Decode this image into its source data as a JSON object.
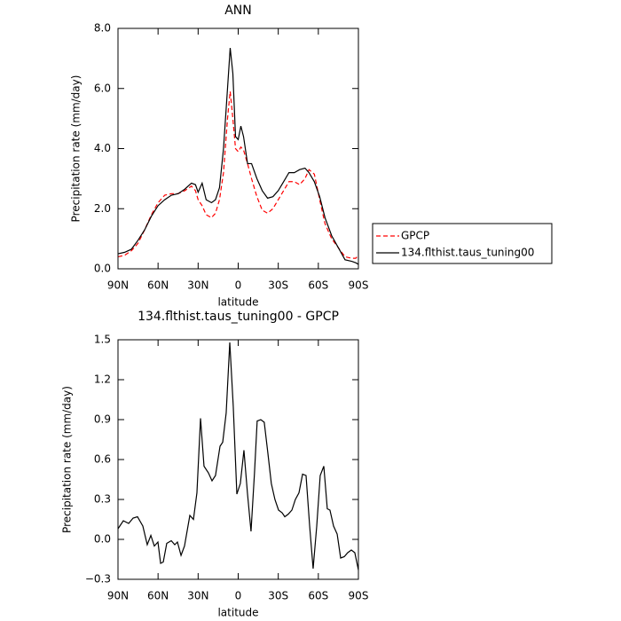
{
  "chart_data": [
    {
      "type": "line",
      "title": "ANN",
      "xlabel": "latitude",
      "ylabel": "Precipitation rate (mm/day)",
      "x": [
        90,
        85,
        80,
        75,
        70,
        65,
        60,
        55,
        50,
        45,
        40,
        35,
        32,
        30,
        27,
        24,
        20,
        17,
        14,
        11,
        8,
        6,
        4,
        2,
        0,
        -2,
        -4,
        -7,
        -10,
        -14,
        -18,
        -22,
        -26,
        -30,
        -34,
        -38,
        -42,
        -46,
        -50,
        -53,
        -57,
        -61,
        -65,
        -70,
        -75,
        -80,
        -85,
        -88,
        -90
      ],
      "series": [
        {
          "name": "GPCP",
          "color": "#ff0000",
          "linestyle": "dashed",
          "values": [
            0.4,
            0.45,
            0.6,
            0.85,
            1.3,
            1.8,
            2.2,
            2.45,
            2.5,
            2.5,
            2.6,
            2.75,
            2.6,
            2.3,
            2.1,
            1.8,
            1.7,
            1.85,
            2.3,
            3.2,
            5.0,
            5.9,
            5.0,
            4.0,
            3.9,
            4.05,
            3.95,
            3.5,
            3.0,
            2.4,
            1.95,
            1.85,
            2.0,
            2.3,
            2.6,
            2.9,
            2.9,
            2.8,
            3.0,
            3.3,
            3.15,
            2.3,
            1.5,
            1.0,
            0.7,
            0.4,
            0.35,
            0.35,
            0.45
          ]
        },
        {
          "name": "134.flthist.taus_tuning00",
          "color": "#000000",
          "linestyle": "solid",
          "values": [
            0.5,
            0.55,
            0.65,
            0.95,
            1.3,
            1.75,
            2.1,
            2.3,
            2.45,
            2.5,
            2.65,
            2.85,
            2.8,
            2.55,
            2.85,
            2.3,
            2.2,
            2.3,
            2.7,
            4.0,
            6.0,
            7.35,
            6.5,
            4.4,
            4.3,
            4.75,
            4.4,
            3.5,
            3.5,
            3.0,
            2.6,
            2.35,
            2.4,
            2.6,
            2.9,
            3.2,
            3.2,
            3.3,
            3.35,
            3.2,
            2.9,
            2.4,
            1.7,
            1.1,
            0.7,
            0.3,
            0.25,
            0.2,
            0.15
          ]
        }
      ],
      "xlim": [
        90,
        -90
      ],
      "xticks": [
        {
          "value": 90,
          "label": "90N"
        },
        {
          "value": 60,
          "label": "60N"
        },
        {
          "value": 30,
          "label": "30N"
        },
        0,
        {
          "value": -30,
          "label": "30S"
        },
        {
          "value": -60,
          "label": "60S"
        },
        {
          "value": -90,
          "label": "90S"
        }
      ],
      "ylim": [
        0,
        8
      ],
      "yticks": [
        {
          "value": 0,
          "label": "0.0"
        },
        {
          "value": 2,
          "label": "2.0"
        },
        {
          "value": 4,
          "label": "4.0"
        },
        {
          "value": 6,
          "label": "6.0"
        },
        {
          "value": 8,
          "label": "8.0"
        }
      ],
      "legend": "right"
    },
    {
      "type": "line",
      "title": "134.flthist.taus_tuning00 - GPCP",
      "xlabel": "latitude",
      "ylabel": "Precipitation rate (mm/day)",
      "x": [
        90,
        86.0,
        82.0,
        78.7,
        75.4,
        71.4,
        68.1,
        65.4,
        62.8,
        60.1,
        58.1,
        56.1,
        53.5,
        50.1,
        47.5,
        45.5,
        42.8,
        40.2,
        36.2,
        33.5,
        30.9,
        28.2,
        25.6,
        22.3,
        19.6,
        17.0,
        13.6,
        11.6,
        9.0,
        6.3,
        3.7,
        1.0,
        -1.6,
        -4.3,
        -6.9,
        -9.6,
        -12.2,
        -14.2,
        -16.9,
        -19.5,
        -22.2,
        -24.8,
        -27.5,
        -30.2,
        -32.9,
        -34.9,
        -37.5,
        -40.2,
        -42.8,
        -45.5,
        -48.2,
        -50.8,
        -53.5,
        -56.1,
        -58.8,
        -61.4,
        -64.1,
        -66.7,
        -68.7,
        -71.4,
        -74.1,
        -76.7,
        -79.4,
        -82.0,
        -84.7,
        -87.3,
        -90
      ],
      "series": [
        {
          "name": "134.flthist.taus_tuning00 - GPCP",
          "color": "#000000",
          "linestyle": "solid",
          "values": [
            0.08,
            0.14,
            0.12,
            0.16,
            0.17,
            0.1,
            -0.04,
            0.03,
            -0.05,
            -0.02,
            -0.18,
            -0.17,
            -0.03,
            -0.01,
            -0.04,
            -0.02,
            -0.12,
            -0.05,
            0.18,
            0.15,
            0.35,
            0.91,
            0.55,
            0.5,
            0.44,
            0.48,
            0.7,
            0.73,
            0.95,
            1.48,
            1.0,
            0.34,
            0.42,
            0.67,
            0.35,
            0.06,
            0.5,
            0.89,
            0.9,
            0.88,
            0.65,
            0.42,
            0.3,
            0.22,
            0.2,
            0.17,
            0.19,
            0.22,
            0.3,
            0.35,
            0.49,
            0.48,
            0.1,
            -0.22,
            0.1,
            0.48,
            0.55,
            0.23,
            0.22,
            0.1,
            0.04,
            -0.14,
            -0.13,
            -0.1,
            -0.08,
            -0.1,
            -0.23
          ]
        }
      ],
      "xlim": [
        90,
        -90
      ],
      "xticks": [
        {
          "value": 90,
          "label": "90N"
        },
        {
          "value": 60,
          "label": "60N"
        },
        {
          "value": 30,
          "label": "30N"
        },
        0,
        {
          "value": -30,
          "label": "30S"
        },
        {
          "value": -60,
          "label": "60S"
        },
        {
          "value": -90,
          "label": "90S"
        }
      ],
      "ylim": [
        -0.3,
        1.5
      ],
      "yticks": [
        {
          "value": -0.3,
          "label": "−0.3"
        },
        {
          "value": 0,
          "label": "0.0"
        },
        0.3,
        0.6,
        0.9,
        1.2,
        1.5
      ]
    }
  ]
}
